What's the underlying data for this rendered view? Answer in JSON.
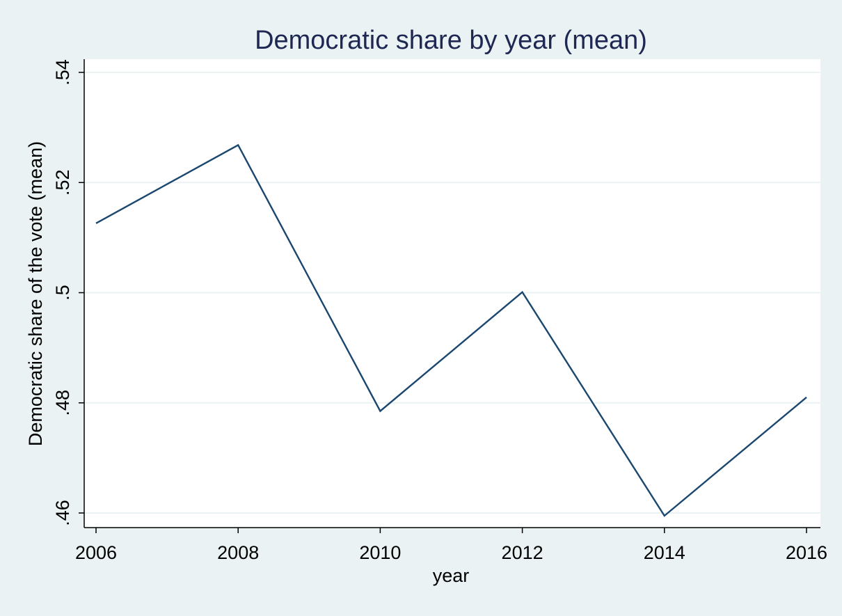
{
  "chart_data": {
    "type": "line",
    "title": "Democratic share by year (mean)",
    "xlabel": "year",
    "ylabel": "Democratic share of the vote (mean)",
    "x": [
      2006,
      2008,
      2010,
      2012,
      2014,
      2016
    ],
    "series": [
      {
        "values": [
          0.5126,
          0.5268,
          0.4785,
          0.5001,
          0.4595,
          0.481
        ]
      }
    ],
    "xticks": [
      2006,
      2008,
      2010,
      2012,
      2014,
      2016
    ],
    "xtick_labels": [
      "2006",
      "2008",
      "2010",
      "2012",
      "2014",
      "2016"
    ],
    "yticks": [
      0.46,
      0.48,
      0.5,
      0.52,
      0.54
    ],
    "ytick_labels": [
      ".46",
      ".48",
      ".5",
      ".52",
      ".54"
    ],
    "xlim": [
      2006,
      2016
    ],
    "ylim": [
      0.46,
      0.54
    ],
    "grid": "horizontal",
    "legend": "none",
    "colors": {
      "background": "#eaf2f3",
      "plot_background": "#ffffff",
      "line": "#1a476f",
      "grid": "#eaf2f3",
      "title": "#1e2853",
      "text": "#000000"
    }
  }
}
